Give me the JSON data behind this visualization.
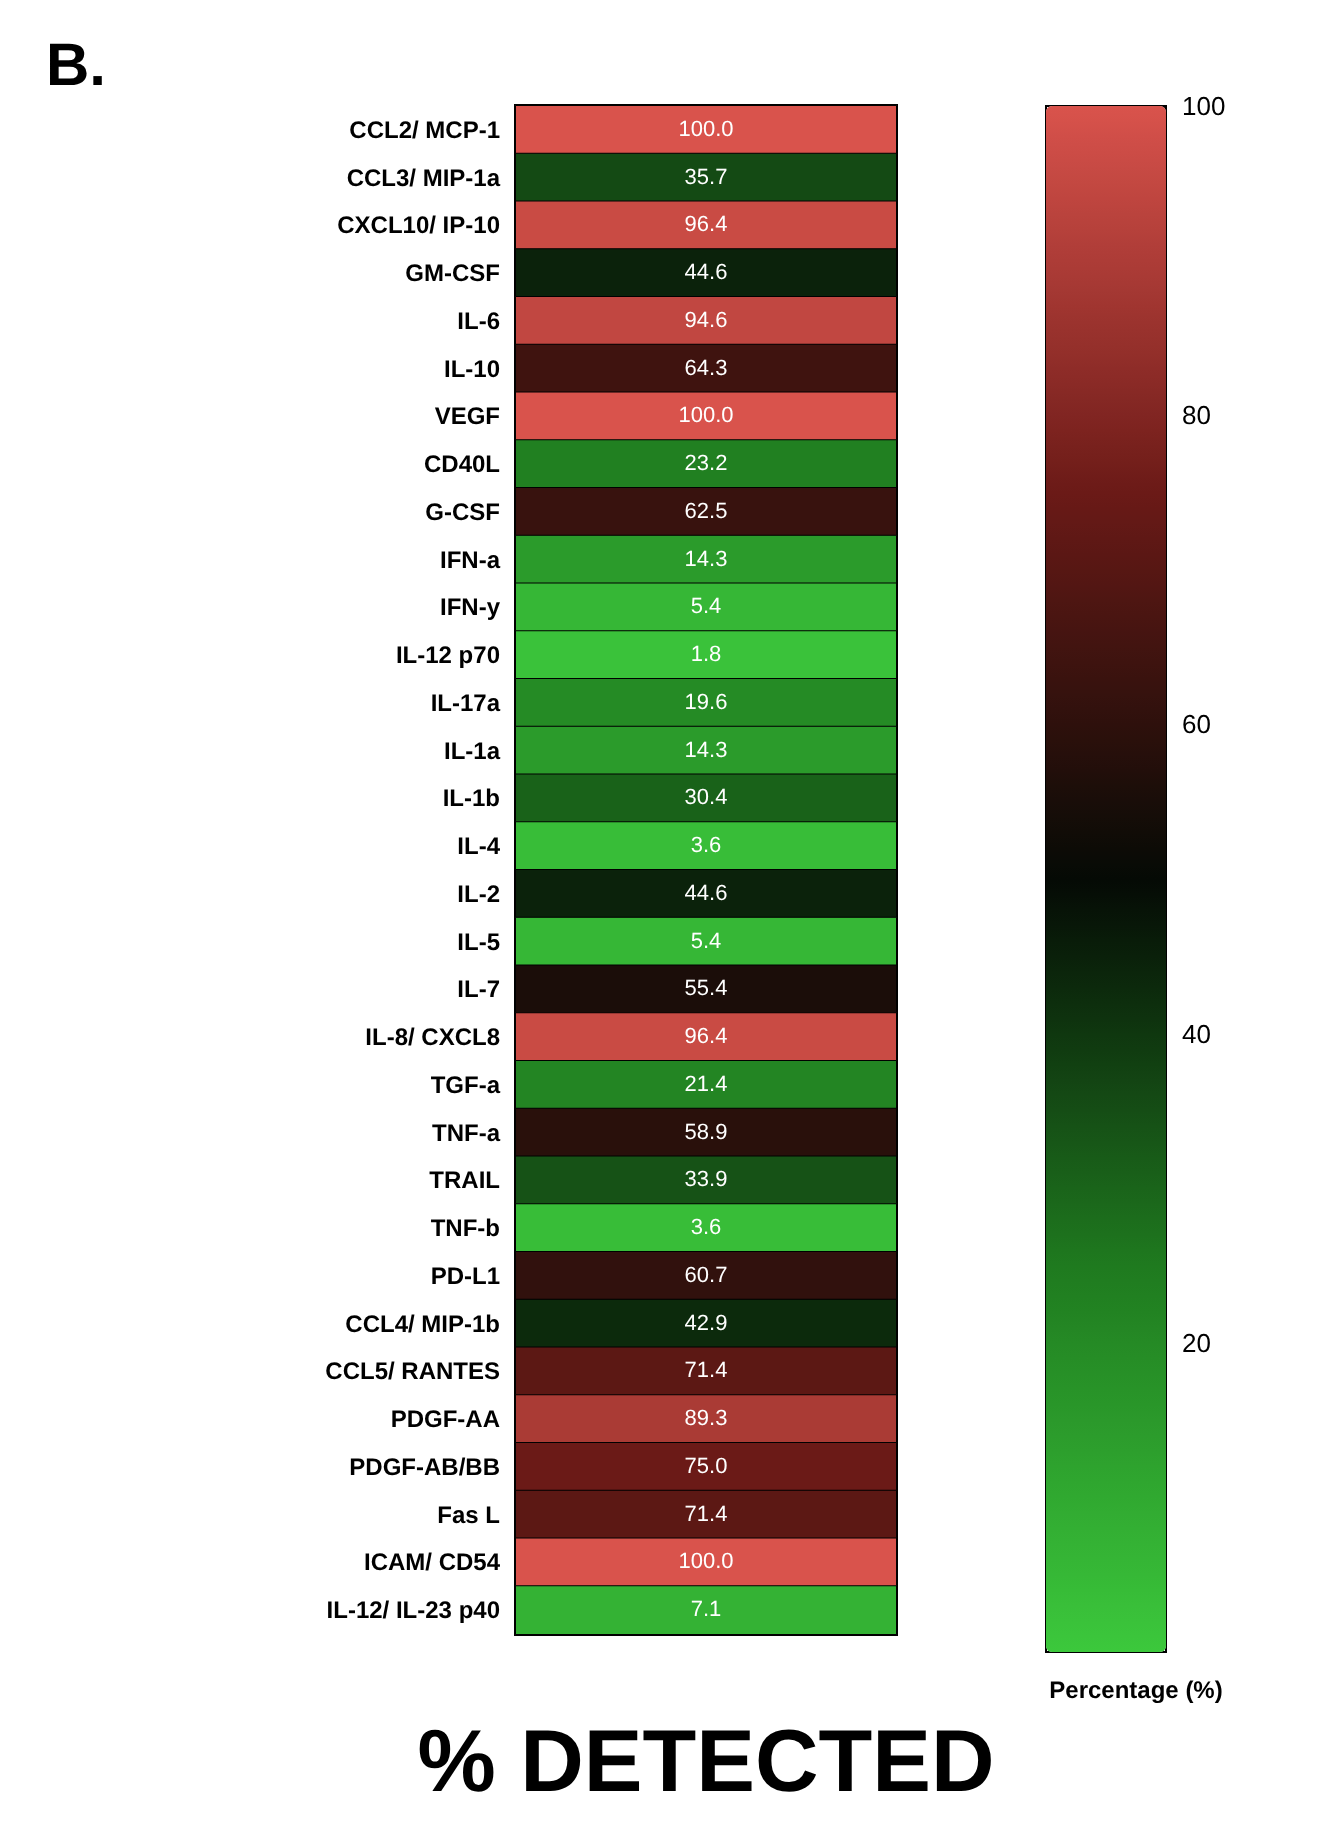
{
  "chart_data": {
    "type": "heatmap",
    "title": "B.",
    "xlabel": "% DETECTED",
    "clabel": "Percentage (%)",
    "categories": [
      null
    ],
    "y_categories": [
      "CCL2/ MCP-1",
      "CCL3/ MIP-1a",
      "CXCL10/ IP-10",
      "GM-CSF",
      "IL-6",
      "IL-10",
      "VEGF",
      "CD40L",
      "G-CSF",
      "IFN-a",
      "IFN-y",
      "IL-12 p70",
      "IL-17a",
      "IL-1a",
      "IL-1b",
      "IL-4",
      "IL-2",
      "IL-5",
      "IL-7",
      "IL-8/ CXCL8",
      "TGF-a",
      "TNF-a",
      "TRAIL",
      "TNF-b",
      "PD-L1",
      "CCL4/ MIP-1b",
      "CCL5/ RANTES",
      "PDGF-AA",
      "PDGF-AB/BB",
      "Fas L",
      "ICAM/ CD54",
      "IL-12/ IL-23 p40"
    ],
    "cells": [
      [
        100.0
      ],
      [
        35.7
      ],
      [
        96.4
      ],
      [
        44.6
      ],
      [
        94.6
      ],
      [
        64.3
      ],
      [
        100.0
      ],
      [
        23.2
      ],
      [
        62.5
      ],
      [
        14.3
      ],
      [
        5.4
      ],
      [
        1.8
      ],
      [
        19.6
      ],
      [
        14.3
      ],
      [
        30.4
      ],
      [
        3.6
      ],
      [
        44.6
      ],
      [
        5.4
      ],
      [
        55.4
      ],
      [
        96.4
      ],
      [
        21.4
      ],
      [
        58.9
      ],
      [
        33.9
      ],
      [
        3.6
      ],
      [
        60.7
      ],
      [
        42.9
      ],
      [
        71.4
      ],
      [
        89.3
      ],
      [
        75.0
      ],
      [
        71.4
      ],
      [
        100.0
      ],
      [
        7.1
      ]
    ],
    "cell_labels": [
      [
        "100.0"
      ],
      [
        "35.7"
      ],
      [
        "96.4"
      ],
      [
        "44.6"
      ],
      [
        "94.6"
      ],
      [
        "64.3"
      ],
      [
        "100.0"
      ],
      [
        "23.2"
      ],
      [
        "62.5"
      ],
      [
        "14.3"
      ],
      [
        "5.4"
      ],
      [
        "1.8"
      ],
      [
        "19.6"
      ],
      [
        "14.3"
      ],
      [
        "30.4"
      ],
      [
        "3.6"
      ],
      [
        "44.6"
      ],
      [
        "5.4"
      ],
      [
        "55.4"
      ],
      [
        "96.4"
      ],
      [
        "21.4"
      ],
      [
        "58.9"
      ],
      [
        "33.9"
      ],
      [
        "3.6"
      ],
      [
        "60.7"
      ],
      [
        "42.9"
      ],
      [
        "71.4"
      ],
      [
        "89.3"
      ],
      [
        "75.0"
      ],
      [
        "71.4"
      ],
      [
        "100.0"
      ],
      [
        "7.1"
      ]
    ],
    "data_labels": true,
    "clim": [
      0,
      100
    ],
    "cticks": [
      20,
      40,
      60,
      80,
      100
    ]
  }
}
